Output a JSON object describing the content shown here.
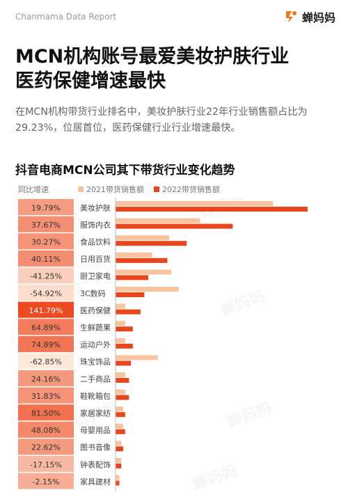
{
  "header": {
    "report_label": "Chanmama Data Report",
    "brand_name": "蝉妈妈",
    "brand_icon": "cicada-logo-icon",
    "watermark_text": "蝉妈妈"
  },
  "title": {
    "line1": "MCN机构账号最爱美妆护肤行业",
    "line2": "医药保健增速最快"
  },
  "description": "在MCN机构带货行业排名中，美妆护肤行业22年行业销售额占比为29.23%，位居首位，医药保健行业行业增速最快。",
  "colors": {
    "series_2021": "#f9c49d",
    "series_2022": "#e8461d",
    "yoy_low": "#fde9dc",
    "yoy_high": "#ee4a22"
  },
  "chart_data": {
    "type": "bar",
    "orientation": "horizontal",
    "title": "抖音电商MCN公司其下带货行业变化趋势",
    "yoy_header": "同比增速",
    "categories": [
      "美妆护肤",
      "服饰内衣",
      "食品饮料",
      "日用百货",
      "厨卫家电",
      "3C数码",
      "医药保健",
      "生鲜蔬果",
      "运动户外",
      "珠宝饰品",
      "二手商品",
      "鞋靴箱包",
      "家居家纺",
      "母婴用品",
      "图书音像",
      "钟表配饰",
      "家具建材"
    ],
    "yoy": [
      "19.79%",
      "37.67%",
      "30.27%",
      "40.11%",
      "-41.25%",
      "-54.92%",
      "141.79%",
      "64.89%",
      "74.89%",
      "-62.85%",
      "24.16%",
      "31.83%",
      "81.50%",
      "48.08%",
      "22.62%",
      "-17.15%",
      "-2.15%"
    ],
    "yoy_values": [
      19.79,
      37.67,
      30.27,
      40.11,
      -41.25,
      -54.92,
      141.79,
      64.89,
      74.89,
      -62.85,
      24.16,
      31.83,
      81.5,
      48.08,
      22.62,
      -17.15,
      -2.15
    ],
    "series": [
      {
        "name": "2021带货销售额",
        "values": [
          82,
          44,
          28,
          19,
          29,
          33,
          5,
          5,
          5,
          22,
          5,
          5,
          4,
          4,
          3,
          3,
          2
        ]
      },
      {
        "name": "2022带货销售额",
        "values": [
          100,
          61,
          37,
          27,
          17,
          15,
          13,
          9,
          9,
          8,
          7,
          7,
          5,
          5,
          4,
          3,
          2
        ]
      }
    ],
    "xlim": [
      0,
      100
    ],
    "legend_position": "top",
    "grid": false
  }
}
